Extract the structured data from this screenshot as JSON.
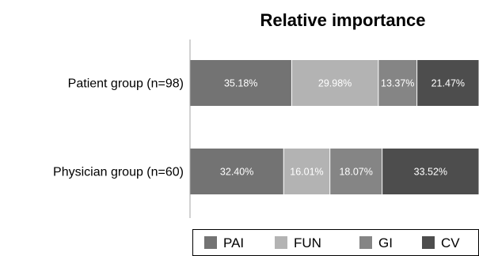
{
  "chart_data": {
    "type": "bar",
    "orientation": "horizontal",
    "stacked": true,
    "percent_stacked": true,
    "title": "Relative importance",
    "categories": [
      "Patient group (n=98)",
      "Physician group (n=60)"
    ],
    "series": [
      {
        "name": "PAI",
        "values": [
          35.18,
          32.4
        ],
        "labels": [
          "35.18%",
          "32.40%"
        ],
        "color": "#737373"
      },
      {
        "name": "FUN",
        "values": [
          29.98,
          16.01
        ],
        "labels": [
          "29.98%",
          "16.01%"
        ],
        "color": "#b3b3b3"
      },
      {
        "name": "GI",
        "values": [
          13.37,
          18.07
        ],
        "labels": [
          "13.37%",
          "18.07%"
        ],
        "color": "#858585"
      },
      {
        "name": "CV",
        "values": [
          21.47,
          33.52
        ],
        "labels": [
          "21.47%",
          "33.52%"
        ],
        "color": "#4d4d4d"
      }
    ],
    "xlim": [
      0,
      100
    ],
    "grid": false,
    "legend_position": "bottom"
  }
}
